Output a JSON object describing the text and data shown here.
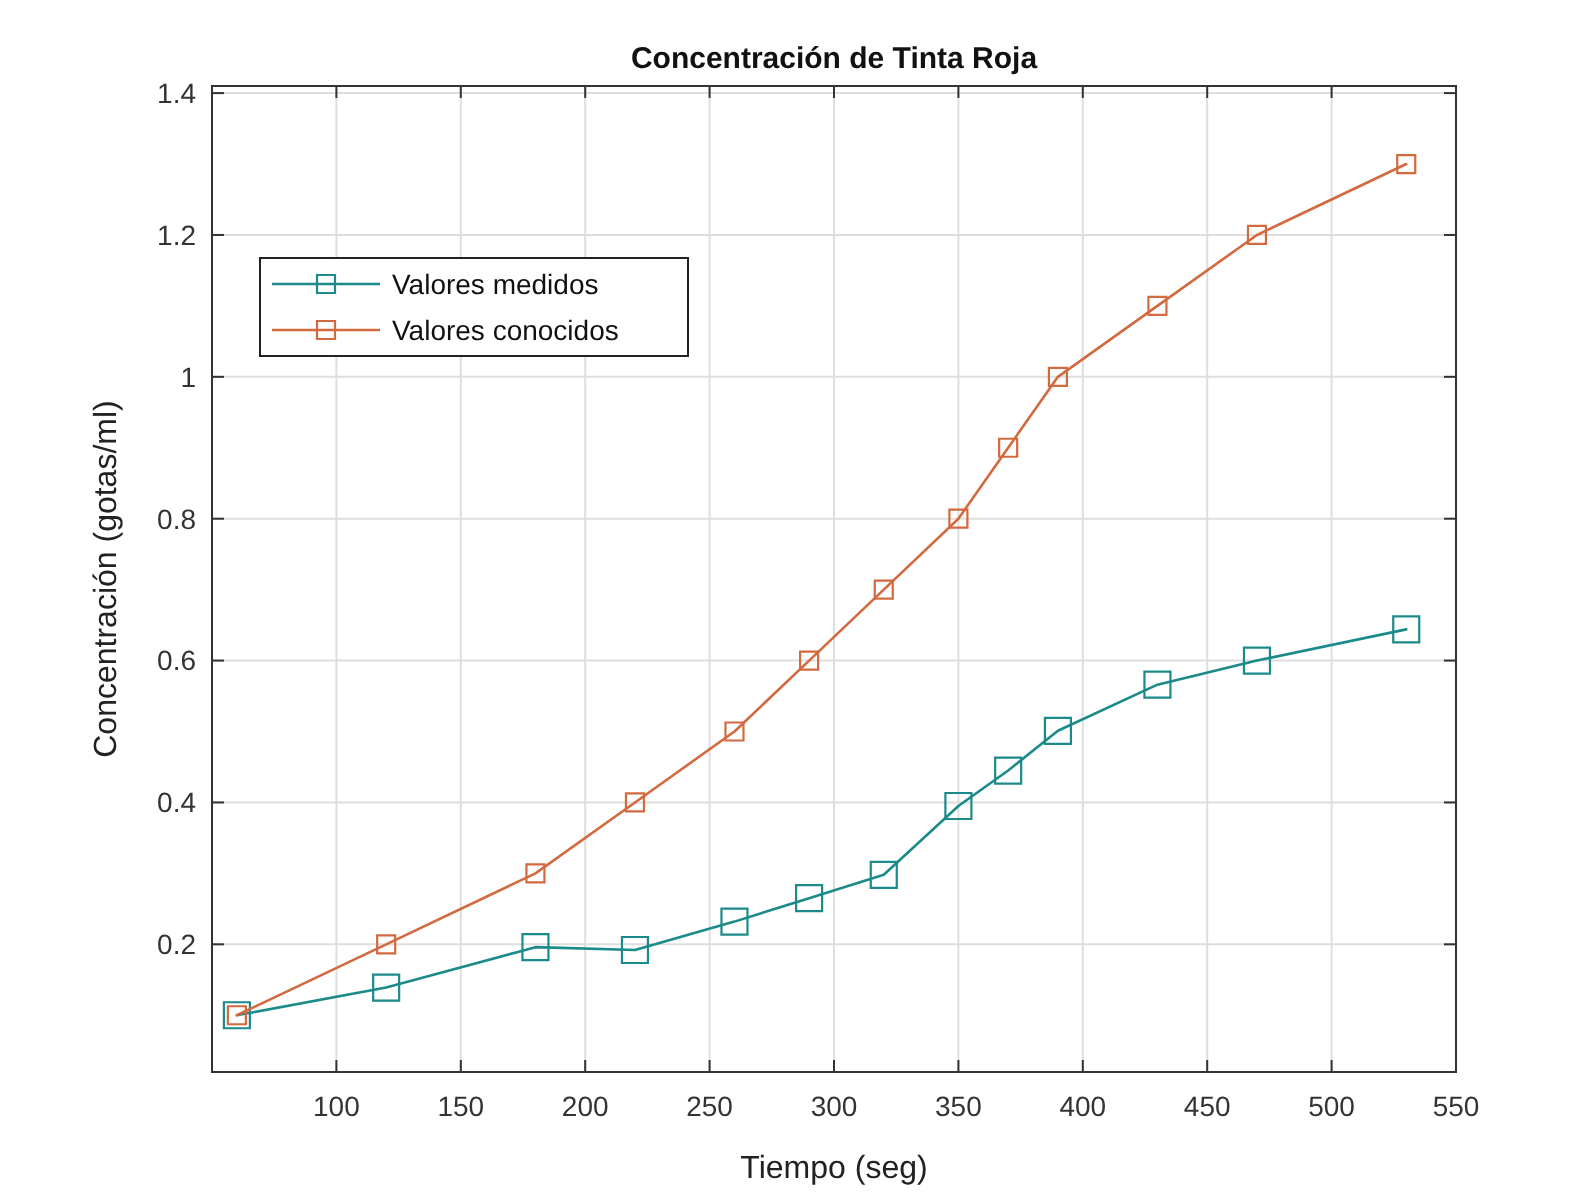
{
  "chart_data": {
    "type": "line",
    "title": "Concentración de Tinta Roja",
    "xlabel": "Tiempo (seg)",
    "ylabel": "Concentración (gotas/ml)",
    "x": [
      60,
      120,
      180,
      220,
      260,
      290,
      320,
      350,
      370,
      390,
      430,
      470,
      530
    ],
    "series": [
      {
        "name": "Valores medidos",
        "color": "#1b8a8a",
        "values": [
          0.1,
          0.139,
          0.196,
          0.192,
          0.232,
          0.265,
          0.298,
          0.395,
          0.445,
          0.501,
          0.566,
          0.6,
          0.644
        ]
      },
      {
        "name": "Valores conocidos",
        "color": "#d2693f",
        "values": [
          0.1,
          0.2,
          0.3,
          0.4,
          0.5,
          0.6,
          0.7,
          0.8,
          0.9,
          1.0,
          1.1,
          1.2,
          1.3
        ]
      }
    ],
    "xlim": [
      50,
      550
    ],
    "ylim": [
      0.02,
      1.41
    ],
    "xticks": [
      100,
      150,
      200,
      250,
      300,
      350,
      400,
      450,
      500,
      550
    ],
    "yticks": [
      0.2,
      0.4,
      0.6,
      0.8,
      1,
      1.2,
      1.4
    ],
    "grid": true,
    "legend": "top left",
    "marker": "square",
    "line_style": "solid"
  }
}
